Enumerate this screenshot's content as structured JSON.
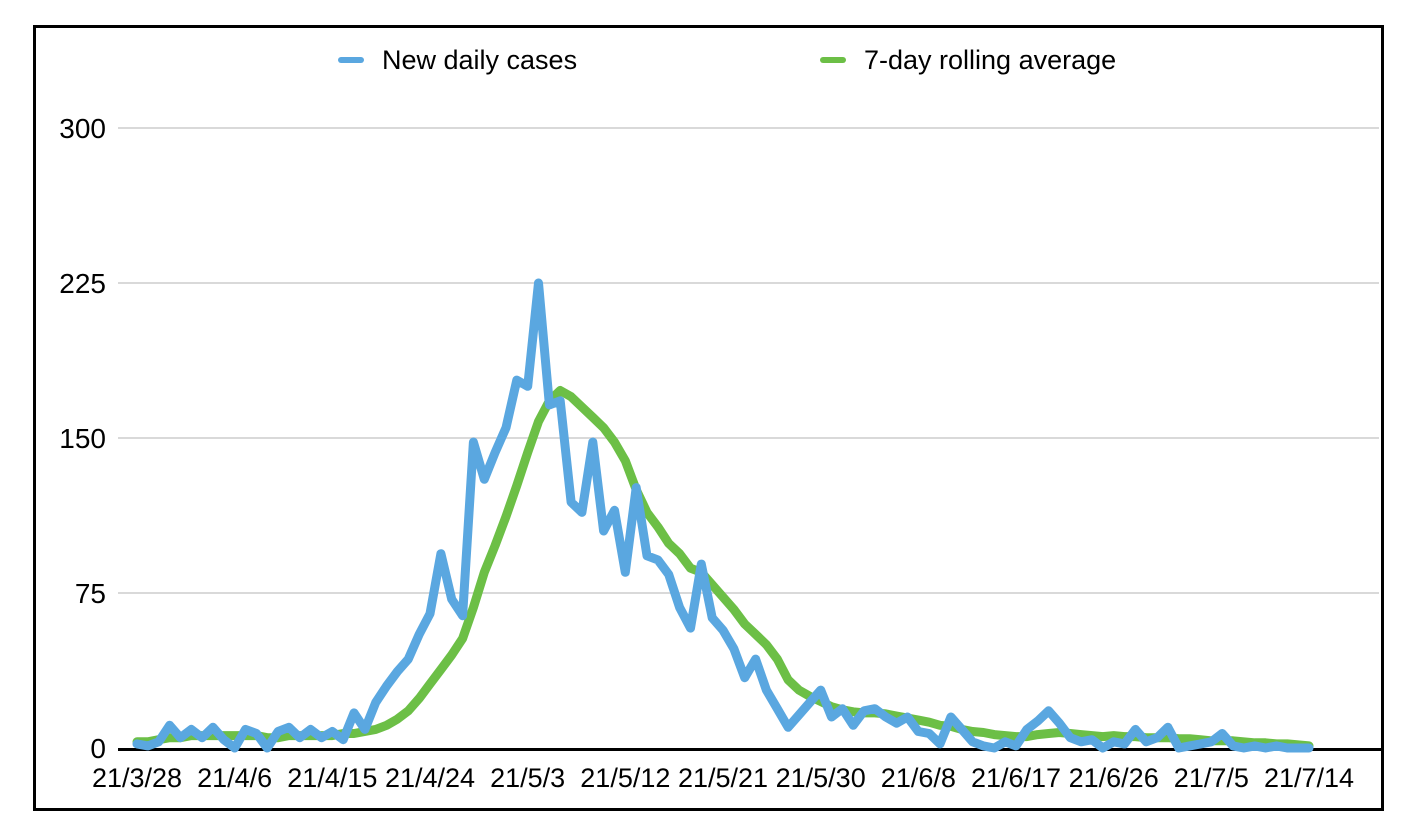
{
  "chart_data": {
    "type": "line",
    "title": "",
    "xlabel": "",
    "ylabel": "",
    "x_labels": [
      "21/3/28",
      "21/4/6",
      "21/4/15",
      "21/4/24",
      "21/5/3",
      "21/5/12",
      "21/5/21",
      "21/5/30",
      "21/6/8",
      "21/6/17",
      "21/6/26",
      "21/7/5",
      "21/7/14"
    ],
    "x_label_interval_days": 9,
    "start_date": "21/3/28",
    "end_date": "21/7/14",
    "y_ticks": [
      0,
      75,
      150,
      225,
      300
    ],
    "ylim": [
      0,
      310
    ],
    "grid": "horizontal",
    "legend_position": "top",
    "axis_color": "#000000",
    "gridline_color": "#D9D9D9",
    "series": [
      {
        "name": "New daily cases",
        "color": "#5AA7E0",
        "values": [
          2,
          1,
          3,
          11,
          5,
          9,
          5,
          10,
          4,
          0,
          9,
          7,
          0,
          8,
          10,
          5,
          9,
          5,
          8,
          4,
          17,
          9,
          22,
          30,
          37,
          43,
          55,
          65,
          94,
          72,
          64,
          148,
          130,
          143,
          155,
          178,
          175,
          225,
          166,
          168,
          119,
          114,
          148,
          105,
          115,
          85,
          126,
          93,
          91,
          84,
          68,
          58,
          89,
          63,
          57,
          48,
          34,
          43,
          28,
          19,
          10,
          16,
          22,
          28,
          15,
          19,
          11,
          18,
          19,
          15,
          12,
          15,
          8,
          7,
          2,
          15,
          9,
          3,
          1,
          0,
          3,
          1,
          9,
          13,
          18,
          12,
          5,
          3,
          4,
          0,
          3,
          2,
          9,
          3,
          5,
          10,
          0,
          1,
          2,
          3,
          7,
          1,
          0,
          1,
          0,
          1,
          0,
          0,
          0
        ]
      },
      {
        "name": "7-day rolling average",
        "color": "#6CBF46",
        "values": [
          3,
          3,
          4,
          5,
          5,
          6,
          6,
          6,
          6,
          6,
          6,
          6,
          5,
          5,
          6,
          6,
          6,
          6,
          6,
          7,
          7,
          8,
          9,
          11,
          14,
          18,
          24,
          31,
          38,
          45,
          53,
          68,
          85,
          98,
          112,
          127,
          143,
          158,
          168,
          173,
          170,
          165,
          160,
          155,
          148,
          139,
          125,
          114,
          107,
          99,
          94,
          87,
          85,
          79,
          73,
          67,
          60,
          55,
          50,
          43,
          33,
          28,
          25,
          22.5,
          20,
          18.5,
          17.5,
          17,
          17,
          16.5,
          15.5,
          14.5,
          13.5,
          12.5,
          11,
          10.5,
          9,
          8,
          7.5,
          6.5,
          6,
          5.5,
          5.5,
          6.5,
          7,
          7.5,
          7,
          6.5,
          6,
          5.5,
          6,
          5.5,
          5.5,
          5,
          5,
          5,
          4.5,
          4.5,
          4,
          3.5,
          3.5,
          3.5,
          3,
          2.5,
          2.5,
          2,
          2,
          1.5,
          1
        ]
      }
    ]
  }
}
